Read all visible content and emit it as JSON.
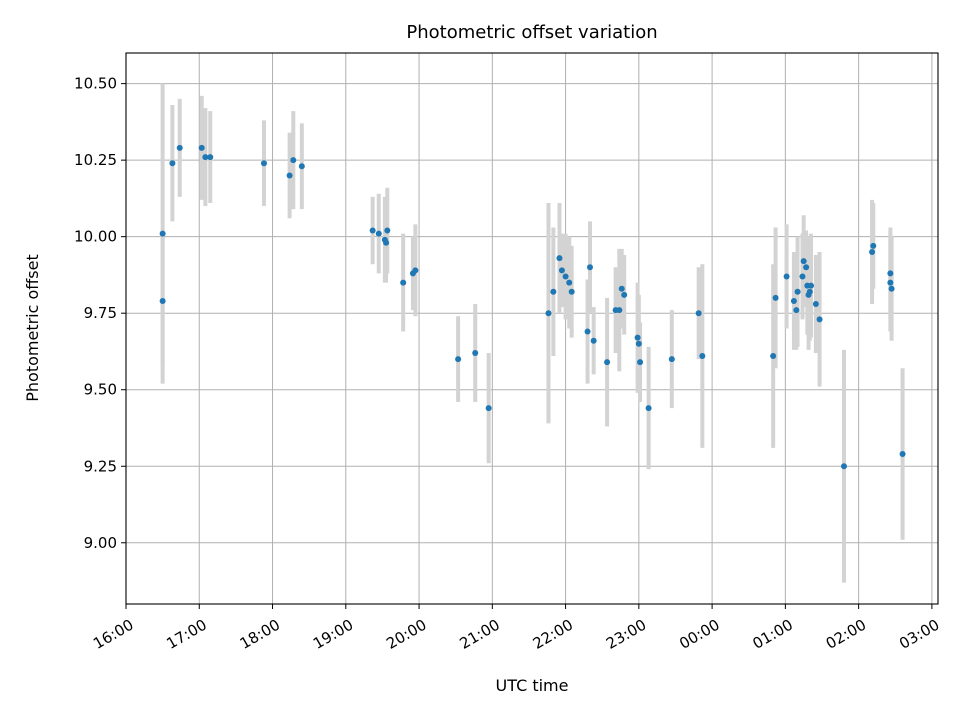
{
  "chart_data": {
    "type": "scatter",
    "title": "Photometric offset variation",
    "xlabel": "UTC time",
    "ylabel": "Photometric offset",
    "grid": true,
    "xlim": [
      "16:00",
      "27:05"
    ],
    "ylim": [
      8.8,
      10.6
    ],
    "x_ticks": [
      "16:00",
      "17:00",
      "18:00",
      "19:00",
      "20:00",
      "21:00",
      "22:00",
      "23:00",
      "00:00",
      "01:00",
      "02:00",
      "03:00"
    ],
    "y_ticks": [
      "9.00",
      "9.25",
      "9.50",
      "9.75",
      "10.00",
      "10.25",
      "10.50"
    ],
    "colors": {
      "marker": "#1f77b4",
      "errorbar": "#d3d3d3",
      "grid": "#b0b0b0"
    },
    "series": [
      {
        "marker": "point",
        "x": [
          "16:30",
          "16:30",
          "16:38",
          "16:44",
          "17:02",
          "17:05",
          "17:09",
          "17:53",
          "18:14",
          "18:17",
          "18:24",
          "19:22",
          "19:27",
          "19:32",
          "19:33",
          "19:34",
          "19:47",
          "19:55",
          "19:57",
          "20:32",
          "20:46",
          "20:57",
          "21:46",
          "21:50",
          "21:55",
          "21:57",
          "22:00",
          "22:03",
          "22:05",
          "22:18",
          "22:20",
          "22:23",
          "22:34",
          "22:41",
          "22:44",
          "22:46",
          "22:48",
          "22:59",
          "23:00",
          "23:01",
          "23:08",
          "23:27",
          "23:49",
          "23:52",
          "00:50",
          "00:52",
          "01:01",
          "01:07",
          "01:09",
          "01:10",
          "01:14",
          "01:15",
          "01:17",
          "01:18",
          "01:19",
          "01:20",
          "01:21",
          "01:25",
          "01:28",
          "01:48",
          "02:11",
          "02:12",
          "02:26",
          "02:26",
          "02:27",
          "02:36"
        ],
        "y": [
          10.01,
          9.79,
          10.24,
          10.29,
          10.29,
          10.26,
          10.26,
          10.24,
          10.2,
          10.25,
          10.23,
          10.02,
          10.01,
          9.99,
          9.98,
          10.02,
          9.85,
          9.88,
          9.89,
          9.6,
          9.62,
          9.44,
          9.75,
          9.82,
          9.93,
          9.89,
          9.87,
          9.85,
          9.82,
          9.69,
          9.9,
          9.66,
          9.59,
          9.76,
          9.76,
          9.83,
          9.81,
          9.67,
          9.65,
          9.59,
          9.44,
          9.6,
          9.75,
          9.61,
          9.61,
          9.8,
          9.87,
          9.79,
          9.76,
          9.82,
          9.87,
          9.92,
          9.9,
          9.84,
          9.81,
          9.82,
          9.84,
          9.78,
          9.73,
          9.25,
          9.95,
          9.97,
          9.88,
          9.85,
          9.83,
          9.29
        ],
        "error": [
          0.49,
          0.21,
          0.19,
          0.16,
          0.17,
          0.16,
          0.15,
          0.14,
          0.14,
          0.16,
          0.14,
          0.11,
          0.13,
          0.14,
          0.13,
          0.14,
          0.16,
          0.12,
          0.15,
          0.14,
          0.16,
          0.18,
          0.36,
          0.21,
          0.18,
          0.12,
          0.14,
          0.15,
          0.15,
          0.17,
          0.15,
          0.11,
          0.21,
          0.14,
          0.2,
          0.13,
          0.13,
          0.18,
          0.16,
          0.13,
          0.2,
          0.16,
          0.15,
          0.3,
          0.3,
          0.23,
          0.17,
          0.16,
          0.13,
          0.18,
          0.14,
          0.15,
          0.12,
          0.16,
          0.18,
          0.16,
          0.17,
          0.16,
          0.22,
          0.38,
          0.17,
          0.14,
          0.15,
          0.16,
          0.17,
          0.28
        ]
      }
    ]
  }
}
